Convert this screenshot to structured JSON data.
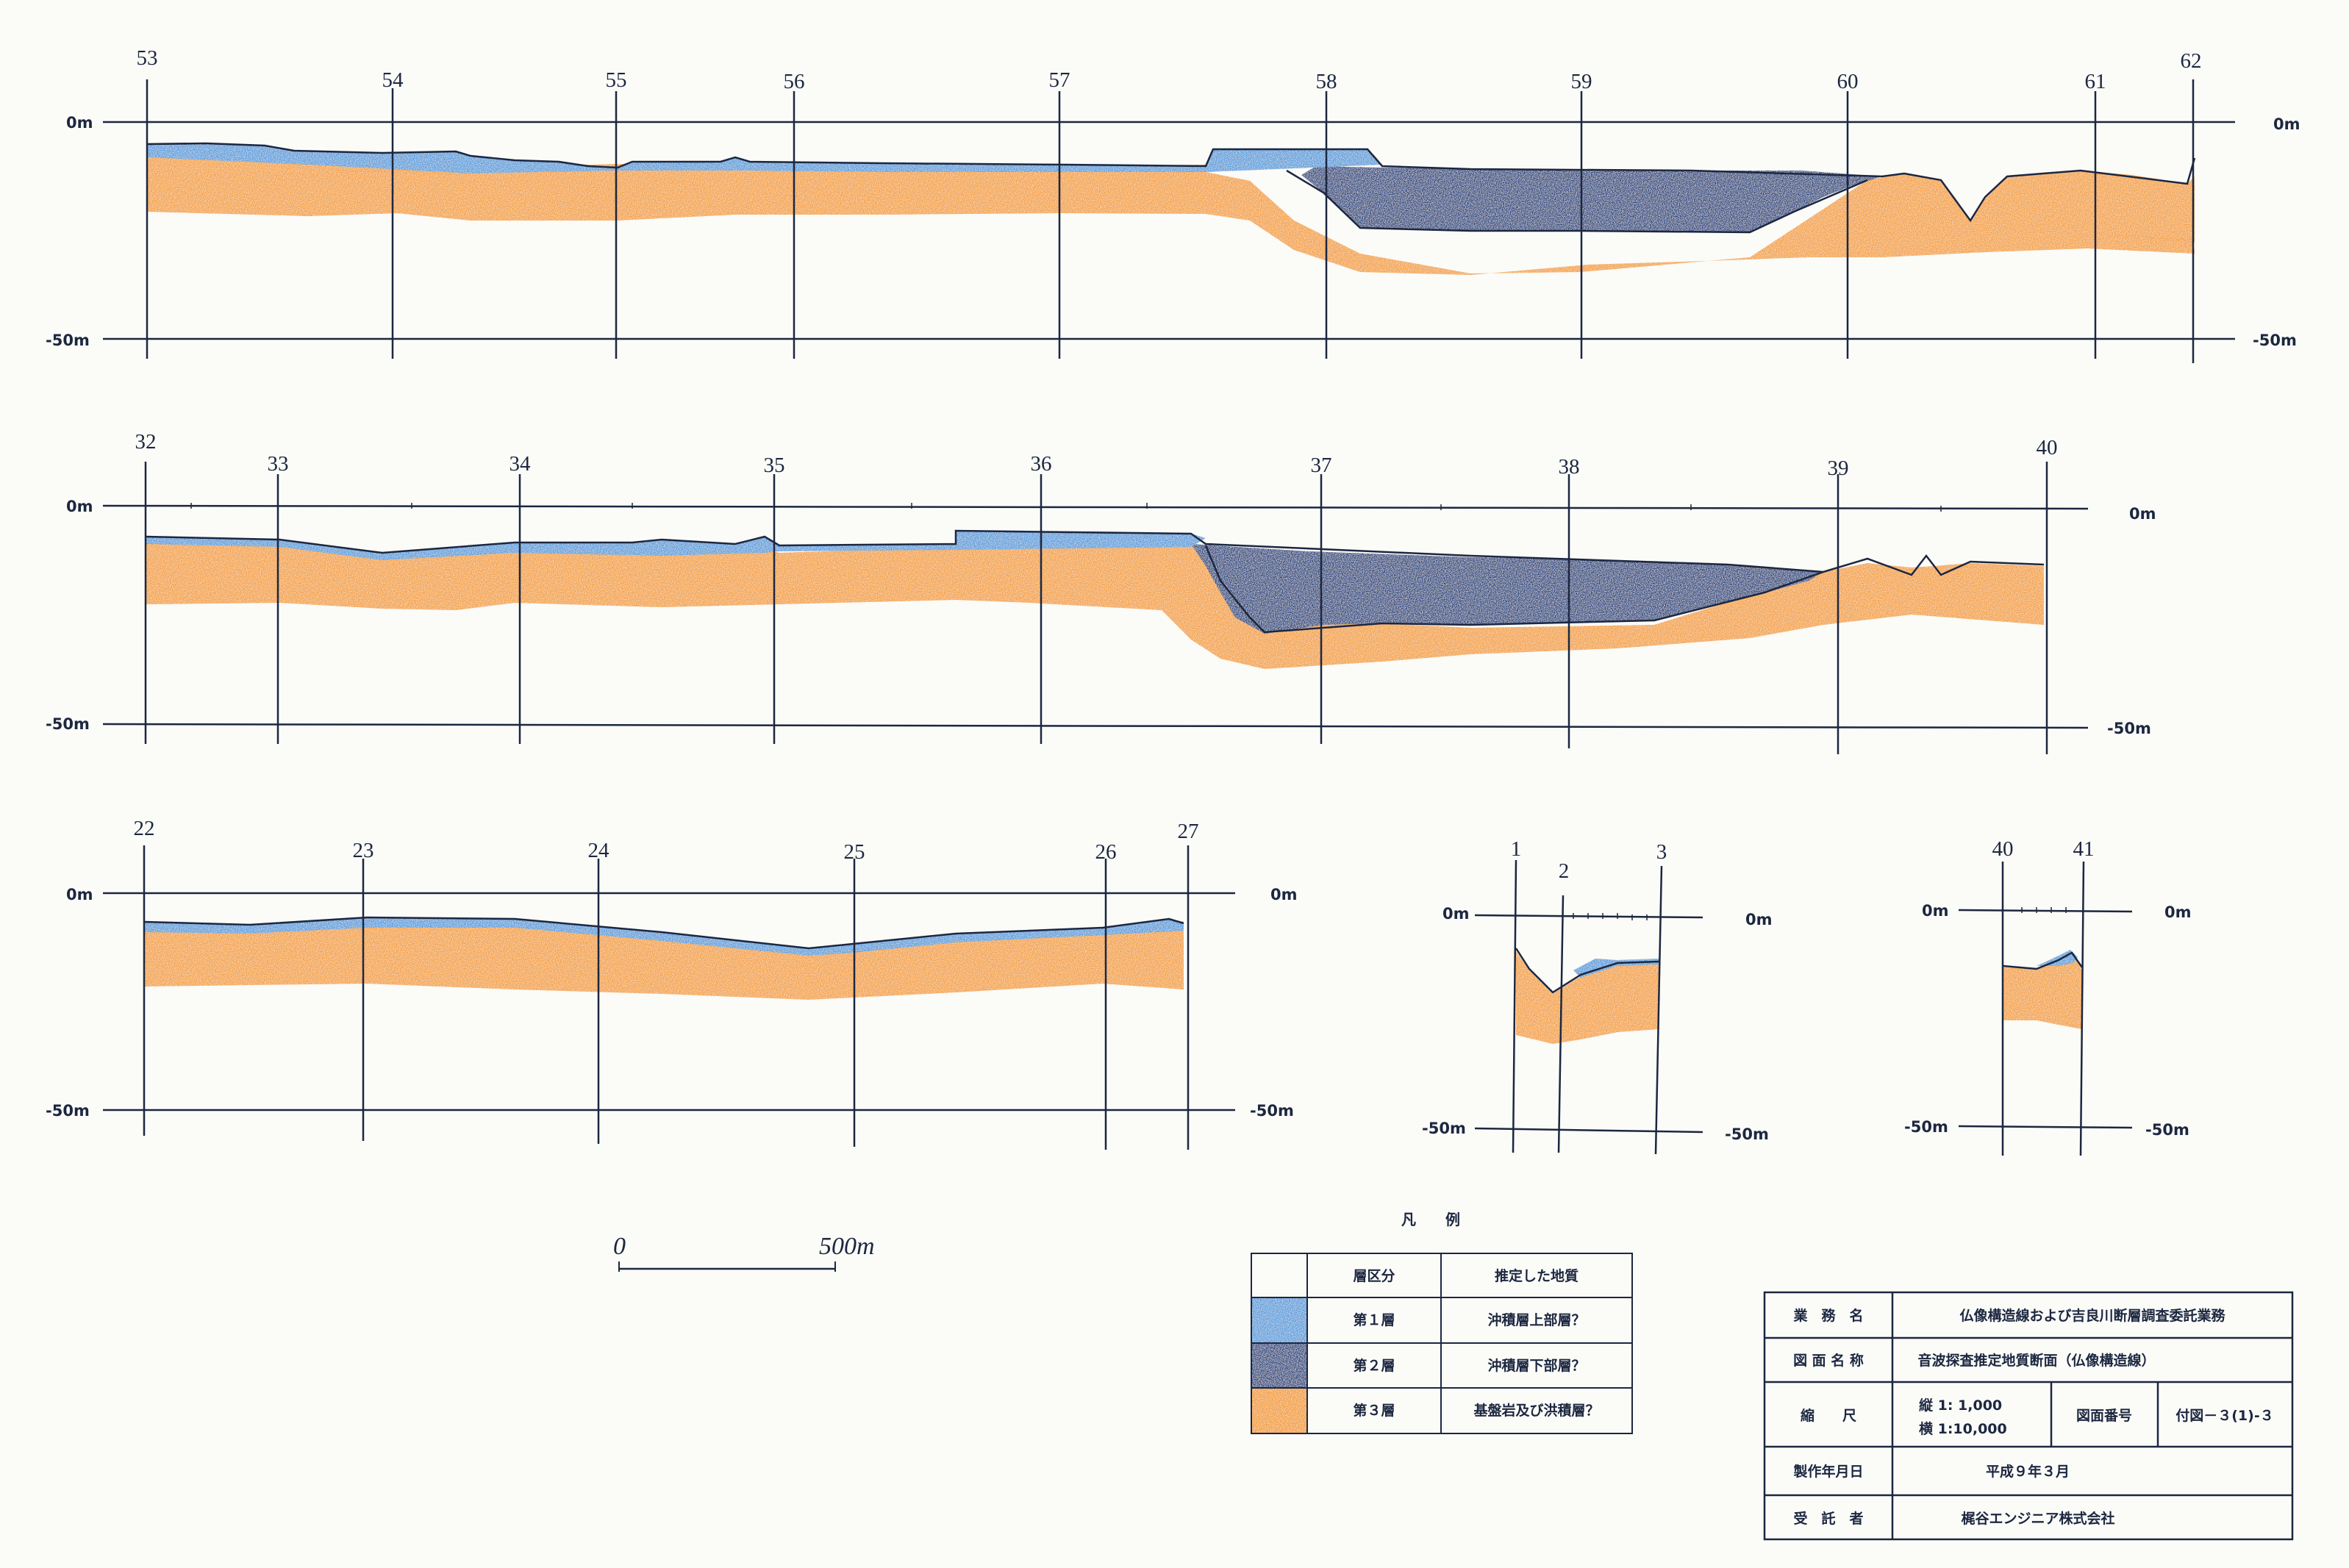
{
  "sections": [
    {
      "id": "A",
      "station_labels": [
        "53",
        "54",
        "55",
        "56",
        "57",
        "58",
        "59",
        "60",
        "61",
        "62"
      ],
      "top_label_left": "0m",
      "top_label_right": "0m",
      "bottom_label_left": "-50m",
      "bottom_label_right": "-50m"
    },
    {
      "id": "B",
      "station_labels": [
        "32",
        "33",
        "34",
        "35",
        "36",
        "37",
        "38",
        "39",
        "40"
      ],
      "top_label_left": "0m",
      "top_label_right": "0m",
      "bottom_label_left": "-50m",
      "bottom_label_right": "-50m"
    },
    {
      "id": "C",
      "station_labels": [
        "22",
        "23",
        "24",
        "25",
        "26",
        "27"
      ],
      "top_label_left": "0m",
      "top_label_right": "0m",
      "bottom_label_left": "-50m",
      "bottom_label_right": "-50m"
    },
    {
      "id": "D",
      "station_labels": [
        "1",
        "2",
        "3"
      ],
      "top_label_left": "0m",
      "top_label_right": "0m",
      "bottom_label_left": "-50m",
      "bottom_label_right": "-50m"
    },
    {
      "id": "E",
      "station_labels": [
        "40",
        "41"
      ],
      "top_label_left": "0m",
      "top_label_right": "0m",
      "bottom_label_left": "-50m",
      "bottom_label_right": "-50m"
    }
  ],
  "scale_bar": {
    "start": "0",
    "end": "500m"
  },
  "legend": {
    "title": "凡　　例",
    "header_layer": "層区分",
    "header_geology": "推定した地質",
    "rows": [
      {
        "layer": "第１層",
        "geology": "沖積層上部層？",
        "color": "#4f9be0"
      },
      {
        "layer": "第２層",
        "geology": "沖積層下部層？",
        "color": "#1b3f86"
      },
      {
        "layer": "第３層",
        "geology": "基盤岩及び洪積層？",
        "color": "#f29a2e"
      }
    ]
  },
  "title_block": {
    "rows": [
      {
        "label": "業　務　名",
        "value": "仏像構造線および吉良川断層調査委託業務"
      },
      {
        "label": "図 面 名 称",
        "value": "音波探査推定地質断面（仏像構造線）"
      },
      {
        "label": "縮　　尺",
        "scale_v": "縦 1: 1,000",
        "scale_h": "横 1:10,000",
        "drawing_no_label": "図面番号",
        "drawing_no": "付図－３(1)-３"
      },
      {
        "label": "製作年月日",
        "value": "平成９年３月"
      },
      {
        "label": "受　託　者",
        "value": "梶谷エンジニア株式会社"
      }
    ]
  },
  "colors": {
    "layer1": "#4f9be0",
    "layer2": "#1b3f86",
    "layer3": "#f29a2e",
    "line": "#1c2740"
  }
}
